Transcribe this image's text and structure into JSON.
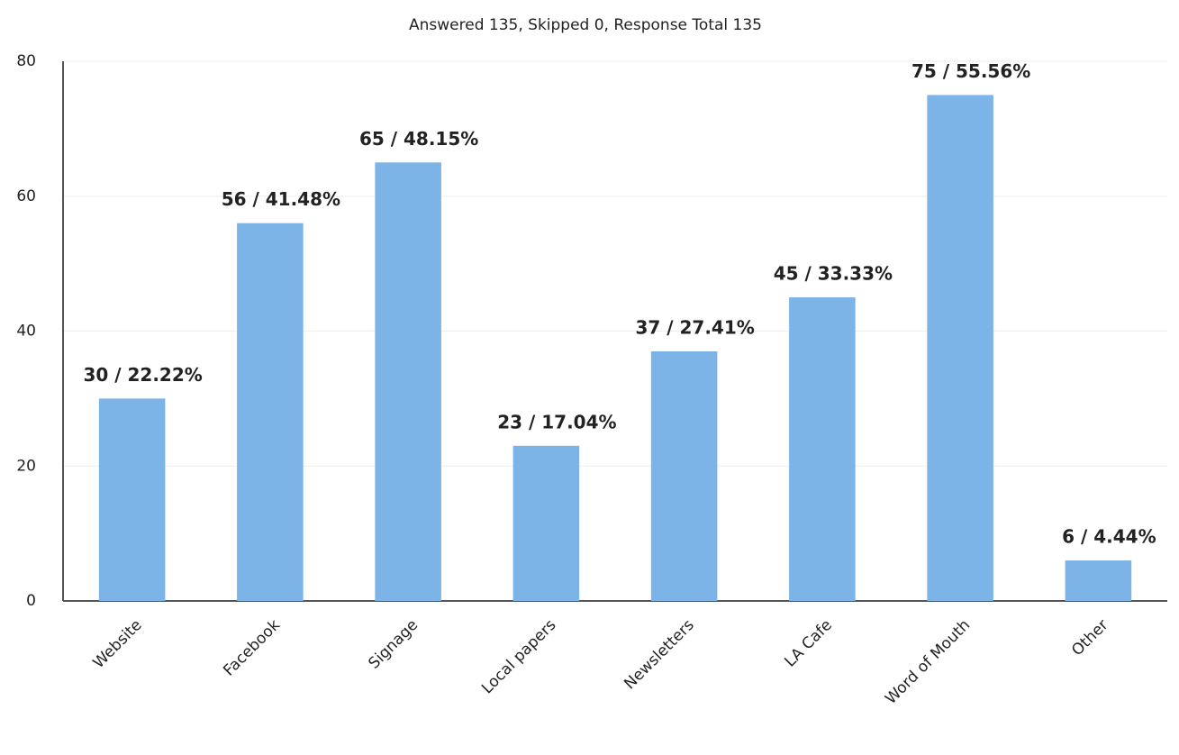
{
  "chart_data": {
    "type": "bar",
    "title": "Answered 135, Skipped 0, Response Total 135",
    "categories": [
      "Website",
      "Facebook",
      "Signage",
      "Local papers",
      "Newsletters",
      "LA Cafe",
      "Word of Mouth",
      "Other"
    ],
    "values": [
      30,
      56,
      65,
      23,
      37,
      45,
      75,
      6
    ],
    "value_labels": [
      "30 / 22.22%",
      "56 / 41.48%",
      "65 / 48.15%",
      "23 / 17.04%",
      "37 / 27.41%",
      "45 / 33.33%",
      "75 / 55.56%",
      "6 / 4.44%"
    ],
    "color": "#7cb4e8",
    "ylim": [
      0,
      80
    ],
    "yticks": [
      0,
      20,
      40,
      60,
      80
    ],
    "grid": true
  }
}
